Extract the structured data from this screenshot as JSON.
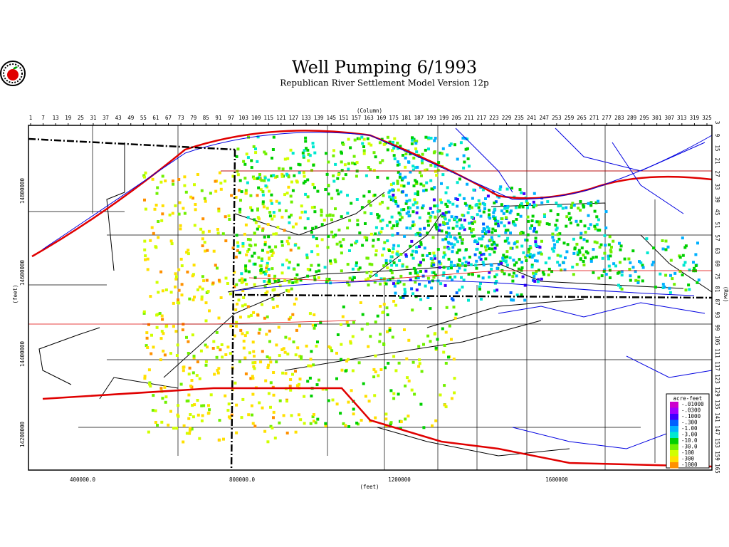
{
  "header": {
    "title": "Well Pumping  6/1993",
    "subtitle": "Republican River Settlement Model Version 12p"
  },
  "top_axis": {
    "label": "(Column)",
    "ticks": [
      1,
      7,
      13,
      19,
      25,
      31,
      37,
      43,
      49,
      55,
      61,
      67,
      73,
      79,
      85,
      91,
      97,
      103,
      109,
      115,
      121,
      127,
      133,
      139,
      145,
      151,
      157,
      163,
      169,
      175,
      181,
      187,
      193,
      199,
      205,
      211,
      217,
      223,
      229,
      235,
      241,
      247,
      253,
      259,
      265,
      271,
      277,
      283,
      289,
      295,
      301,
      307,
      313,
      319,
      325
    ]
  },
  "right_axis": {
    "label": "(Row)",
    "ticks": [
      3,
      9,
      15,
      21,
      27,
      33,
      39,
      45,
      51,
      57,
      63,
      69,
      75,
      81,
      87,
      93,
      99,
      105,
      111,
      117,
      123,
      129,
      135,
      141,
      147,
      153,
      159,
      165
    ]
  },
  "left_axis": {
    "label": "(feet)",
    "ticks": [
      14800000,
      14600000,
      14400000,
      14200000
    ]
  },
  "bottom_axis": {
    "label": "(feet)",
    "ticks": [
      "400000.0",
      "800000.0",
      "1200000",
      "1600000"
    ]
  },
  "legend": {
    "title": "acre-feet",
    "items": [
      {
        "label": "-.01000",
        "color": "#cc00cc"
      },
      {
        "label": "-.0300",
        "color": "#a000ff"
      },
      {
        "label": "-.1000",
        "color": "#4000ff"
      },
      {
        "label": "-.300",
        "color": "#0060ff"
      },
      {
        "label": "-1.00",
        "color": "#00b0ff"
      },
      {
        "label": "-3.00",
        "color": "#00e8d0"
      },
      {
        "label": "-10.0",
        "color": "#00d000"
      },
      {
        "label": "-30.0",
        "color": "#70f000"
      },
      {
        "label": "-100",
        "color": "#d0ff00"
      },
      {
        "label": "-300",
        "color": "#ffe000"
      },
      {
        "label": "-1000",
        "color": "#ff9000"
      }
    ]
  }
}
